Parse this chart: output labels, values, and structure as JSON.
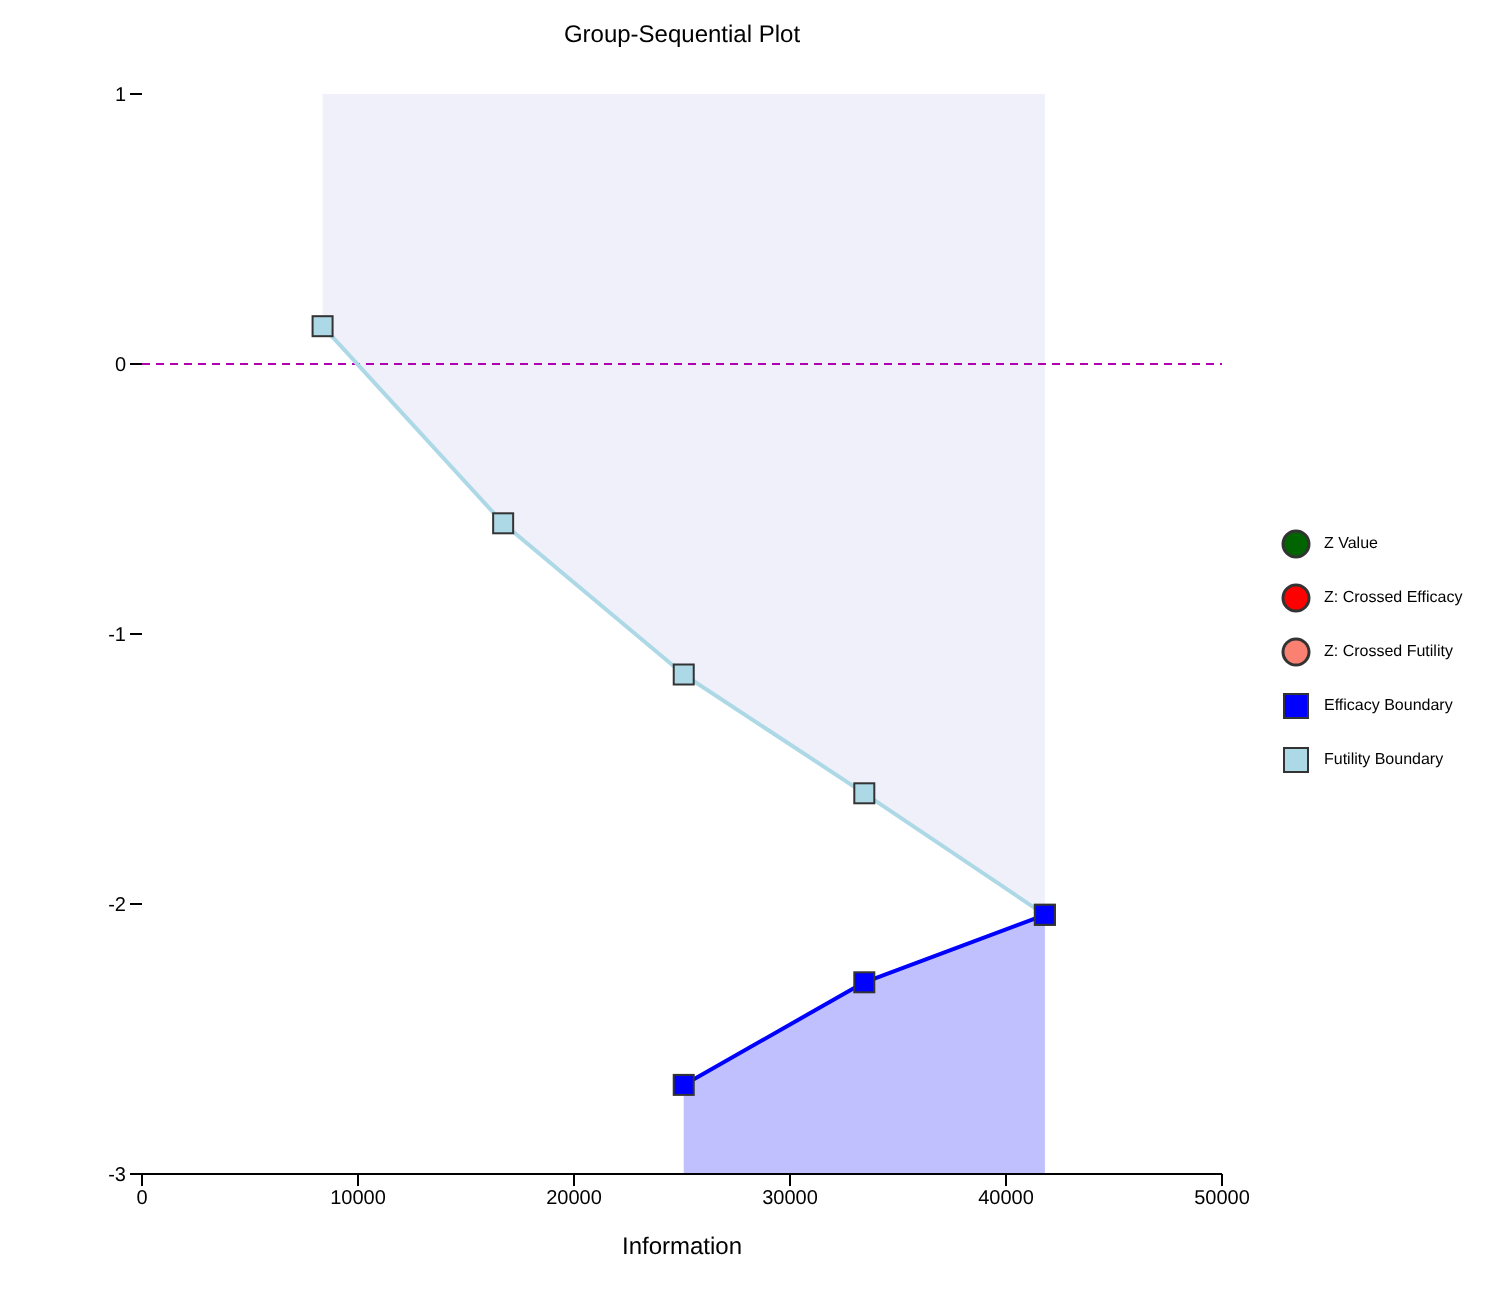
{
  "chart_data": {
    "type": "line",
    "title": "Group-Sequential Plot",
    "xlabel": "Information",
    "xlim": [
      0,
      50000
    ],
    "xticks": [
      0,
      10000,
      20000,
      30000,
      40000,
      50000
    ],
    "ylim": [
      -3,
      1
    ],
    "yticks": [
      -3,
      -2,
      -1,
      0,
      1
    ],
    "grid": false,
    "legend": "right",
    "marker": "square",
    "series": [
      {
        "name": "Z Value",
        "type": "scatter",
        "marker": "circle",
        "color": "#006400"
      },
      {
        "name": "Z: Crossed Efficacy",
        "type": "scatter",
        "marker": "circle",
        "color": "#ff0000"
      },
      {
        "name": "Z: Crossed Futility",
        "type": "scatter",
        "marker": "circle",
        "color": "#fa8072"
      },
      {
        "name": "Efficacy Boundary",
        "color": "#0000ff",
        "x": [
          25080,
          33440,
          41800
        ],
        "values": [
          -2.67,
          -2.29,
          -2.04
        ]
      },
      {
        "name": "Futility Boundary",
        "color": "#add8e6",
        "x": [
          8360,
          16720,
          25080,
          33440,
          41800
        ],
        "values": [
          0.14,
          -0.59,
          -1.15,
          -1.59,
          -2.04
        ]
      }
    ],
    "ref_lines": [
      {
        "axis": "y",
        "value": 0,
        "color": "#b000b0",
        "line_style": "dashed"
      }
    ]
  }
}
